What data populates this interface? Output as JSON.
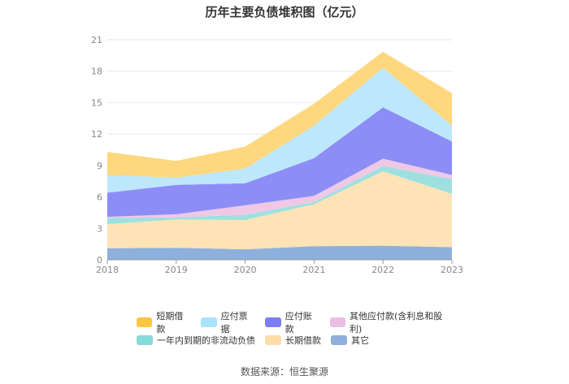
{
  "chart_data": {
    "type": "area",
    "stacked": true,
    "title": "历年主要负债堆积图（亿元）",
    "x": [
      "2018",
      "2019",
      "2020",
      "2021",
      "2022",
      "2023"
    ],
    "yticks": [
      "0",
      "3",
      "6",
      "9",
      "12",
      "15",
      "18",
      "21"
    ],
    "ylim": [
      0,
      21
    ],
    "grid": true,
    "legend_position": "bottom",
    "series": [
      {
        "name": "其它",
        "color": "#8eb0dc",
        "values": [
          1.1,
          1.15,
          1.0,
          1.3,
          1.35,
          1.2
        ]
      },
      {
        "name": "长期借款",
        "color": "#fde3b6",
        "values": [
          2.3,
          2.7,
          2.8,
          4.0,
          7.1,
          5.1
        ]
      },
      {
        "name": "一年内到期的非流动负债",
        "color": "#9ee0df",
        "values": [
          0.6,
          0.2,
          0.5,
          0.2,
          0.5,
          1.4
        ]
      },
      {
        "name": "其他应付款(含利息和股利)",
        "color": "#efc8e6",
        "values": [
          0.1,
          0.3,
          0.9,
          0.6,
          0.7,
          0.4
        ]
      },
      {
        "name": "应付账款",
        "color": "#8c8ef5",
        "values": [
          2.3,
          2.8,
          2.1,
          3.6,
          4.9,
          3.2
        ]
      },
      {
        "name": "应付票据",
        "color": "#bde7fd",
        "values": [
          1.7,
          0.7,
          1.4,
          3.1,
          3.8,
          1.5
        ]
      },
      {
        "name": "短期借款",
        "color": "#fed77e",
        "values": [
          2.2,
          1.6,
          2.1,
          2.1,
          1.5,
          3.1
        ]
      }
    ]
  },
  "legend": {
    "row1": [
      {
        "label": "短期借款",
        "color": "#fcc541"
      },
      {
        "label": "应付票据",
        "color": "#a9e2fd"
      },
      {
        "label": "应付账款",
        "color": "#7b7ef3"
      },
      {
        "label": "其他应付款(含利息和股利)",
        "color": "#ecbde2"
      }
    ],
    "row2": [
      {
        "label": "一年内到期的非流动负债",
        "color": "#86dad8"
      },
      {
        "label": "长期借款",
        "color": "#fddca5"
      },
      {
        "label": "其它",
        "color": "#8eaedb"
      }
    ]
  },
  "source": "数据来源：恒生聚源"
}
